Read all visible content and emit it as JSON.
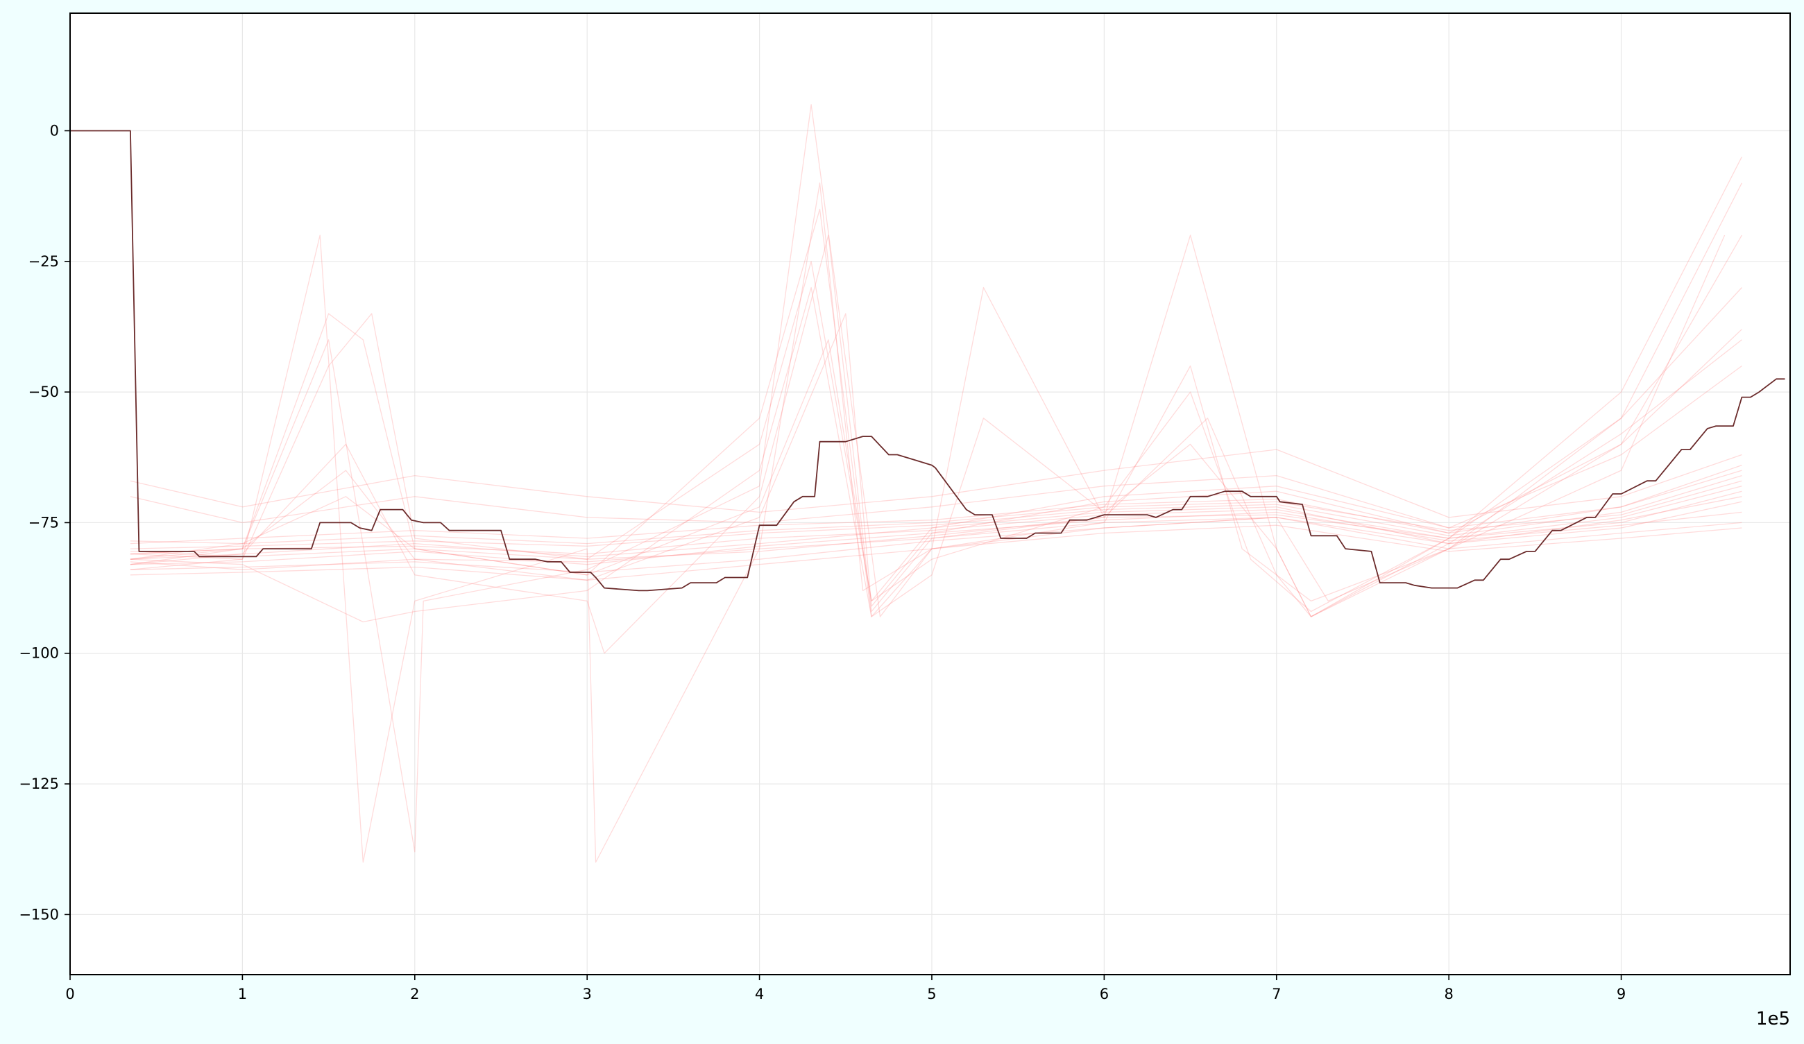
{
  "chart_data": {
    "type": "line",
    "title": "",
    "xlabel": "",
    "ylabel": "",
    "x_offset_text": "1e5",
    "xlim": [
      0,
      9.98
    ],
    "ylim": [
      -161.5,
      22.5
    ],
    "x_ticks": [
      0,
      1,
      2,
      3,
      4,
      5,
      6,
      7,
      8,
      9
    ],
    "x_tick_labels": [
      "0",
      "1",
      "2",
      "3",
      "4",
      "5",
      "6",
      "7",
      "8",
      "9"
    ],
    "y_ticks": [
      0,
      -25,
      -50,
      -75,
      -100,
      -125,
      -150
    ],
    "y_tick_labels": [
      "0",
      "−25",
      "−50",
      "−75",
      "−100",
      "−125",
      "−150"
    ],
    "grid": true,
    "main_series": {
      "color": "#6b2b2b",
      "x": [
        0,
        0.35,
        0.4,
        0.72,
        0.75,
        1.08,
        1.12,
        1.4,
        1.45,
        1.63,
        1.68,
        1.75,
        1.8,
        1.93,
        1.98,
        2.05,
        2.15,
        2.2,
        2.5,
        2.55,
        2.7,
        2.77,
        2.85,
        2.9,
        3.02,
        3.05,
        3.1,
        3.3,
        3.35,
        3.55,
        3.6,
        3.75,
        3.8,
        3.93,
        4.0,
        4.1,
        4.2,
        4.25,
        4.32,
        4.35,
        4.5,
        4.6,
        4.65,
        4.75,
        4.8,
        4.9,
        5.0,
        5.02,
        5.2,
        5.25,
        5.35,
        5.4,
        5.55,
        5.6,
        5.75,
        5.8,
        5.9,
        6.0,
        6.15,
        6.25,
        6.3,
        6.4,
        6.45,
        6.5,
        6.6,
        6.7,
        6.8,
        6.85,
        7.0,
        7.02,
        7.15,
        7.2,
        7.35,
        7.4,
        7.55,
        7.6,
        7.75,
        7.8,
        7.9,
        8.0,
        8.05,
        8.15,
        8.2,
        8.3,
        8.35,
        8.45,
        8.5,
        8.6,
        8.65,
        8.8,
        8.85,
        8.95,
        9.0,
        9.15,
        9.2,
        9.35,
        9.4,
        9.5,
        9.55,
        9.65,
        9.7,
        9.75,
        9.8,
        9.9,
        9.95
      ],
      "y": [
        0,
        0,
        -80.5,
        -80.5,
        -81.5,
        -81.5,
        -80,
        -80,
        -75,
        -75,
        -76,
        -76.5,
        -72.5,
        -72.5,
        -74.5,
        -75,
        -75,
        -76.5,
        -76.5,
        -82,
        -82,
        -82.5,
        -82.5,
        -84.5,
        -84.5,
        -85.5,
        -87.5,
        -88,
        -88,
        -87.5,
        -86.5,
        -86.5,
        -85.5,
        -85.5,
        -75.5,
        -75.5,
        -71,
        -70,
        -70,
        -59.5,
        -59.5,
        -58.5,
        -58.5,
        -62,
        -62,
        -63,
        -64,
        -64.5,
        -72.5,
        -73.5,
        -73.5,
        -78,
        -78,
        -77,
        -77,
        -74.5,
        -74.5,
        -73.5,
        -73.5,
        -73.5,
        -74,
        -72.5,
        -72.5,
        -70,
        -70,
        -69,
        -69,
        -70,
        -70,
        -71,
        -71.5,
        -77.5,
        -77.5,
        -80,
        -80.5,
        -86.5,
        -86.5,
        -87,
        -87.5,
        -87.5,
        -87.5,
        -86,
        -86,
        -82,
        -82,
        -80.5,
        -80.5,
        -76.5,
        -76.5,
        -74,
        -74,
        -69.5,
        -69.5,
        -67,
        -67,
        -61,
        -61,
        -57,
        -56.5,
        -56.5,
        -51,
        -51,
        -50,
        -47.5,
        -47.5
      ]
    },
    "background_series_style": {
      "color": "#ff7f7f",
      "description": "many faint overlapping red ensemble traces"
    },
    "background_series": [
      {
        "x": [
          0.35,
          1.0,
          2.0,
          3.0,
          4.0,
          5.0,
          6.0,
          7.0,
          8.0,
          9.0,
          9.7
        ],
        "y": [
          -82.5,
          -84,
          -82,
          -82.5,
          -80,
          -78,
          -75,
          -74,
          -79,
          -76,
          -71
        ]
      },
      {
        "x": [
          0.35,
          1.0,
          2.0,
          3.0,
          4.0,
          5.0,
          6.0,
          7.0,
          8.0,
          9.0,
          9.7
        ],
        "y": [
          -81,
          -80,
          -79.5,
          -81,
          -78,
          -76.5,
          -73.5,
          -72.5,
          -78,
          -74,
          -68
        ]
      },
      {
        "x": [
          0.35,
          1.0,
          2.0,
          3.0,
          4.0,
          5.0,
          6.0,
          7.0,
          8.0,
          9.0,
          9.7
        ],
        "y": [
          -83,
          -82.5,
          -80.5,
          -83,
          -79.5,
          -77,
          -74.5,
          -73,
          -78.5,
          -75.5,
          -73
        ]
      },
      {
        "x": [
          0.35,
          1.0,
          2.0,
          3.0,
          4.0,
          5.0,
          6.0,
          7.0,
          8.0,
          9.0,
          9.7
        ],
        "y": [
          -80,
          -79.5,
          -78.5,
          -79.5,
          -77,
          -75.5,
          -72.5,
          -71.5,
          -77.5,
          -73,
          -66
        ]
      },
      {
        "x": [
          0.35,
          1.0,
          2.0,
          3.0,
          4.0,
          5.0,
          6.0,
          7.0,
          8.0,
          9.0,
          9.7
        ],
        "y": [
          -84,
          -83.5,
          -82.5,
          -84.5,
          -82,
          -78.5,
          -76,
          -74,
          -80,
          -77,
          -75
        ]
      },
      {
        "x": [
          0.35,
          1.0,
          2.0,
          3.0,
          4.0,
          5.0,
          6.0,
          7.0,
          8.0,
          9.0,
          9.7
        ],
        "y": [
          -79,
          -78,
          -76.5,
          -78,
          -75.5,
          -74.5,
          -71.5,
          -70.5,
          -77,
          -72,
          -64
        ]
      },
      {
        "x": [
          0.35,
          1.0,
          2.0,
          3.0,
          4.0,
          5.0,
          6.0,
          7.0,
          8.0,
          9.0,
          9.7
        ],
        "y": [
          -82,
          -81,
          -79,
          -81.5,
          -79,
          -76,
          -73,
          -72,
          -79,
          -74.5,
          -70
        ]
      },
      {
        "x": [
          0.35,
          1.0,
          2.0,
          3.0,
          4.0,
          5.0,
          6.0,
          7.0,
          8.0,
          9.0,
          9.7
        ],
        "y": [
          -85,
          -84.5,
          -83.5,
          -86,
          -83,
          -80,
          -77,
          -75.5,
          -80.5,
          -78,
          -76
        ]
      },
      {
        "x": [
          0.35,
          1.0,
          2.0,
          3.0,
          4.0,
          5.0,
          6.0,
          7.0,
          8.0,
          9.0,
          9.7
        ],
        "y": [
          -78.5,
          -79,
          -77.5,
          -79,
          -76.5,
          -75,
          -72,
          -71,
          -76.5,
          -73.5,
          -67
        ]
      },
      {
        "x": [
          0.35,
          1.0,
          2.0,
          3.0,
          4.0,
          5.0,
          6.0,
          7.0,
          8.0,
          9.0,
          9.7
        ],
        "y": [
          -80.5,
          -81.5,
          -80,
          -82,
          -80.5,
          -77.5,
          -74,
          -73.5,
          -78,
          -75,
          -69
        ]
      },
      {
        "x": [
          0.35,
          1.0,
          1.5,
          1.7,
          2.0,
          3.0,
          4.0,
          4.35,
          4.65,
          5.0,
          6.0,
          6.5,
          6.8,
          7.2,
          8.0,
          9.0,
          9.7
        ],
        "y": [
          -82,
          -80,
          -35,
          -40,
          -80,
          -85,
          -55,
          -15,
          -93,
          -80,
          -75,
          -45,
          -80,
          -90,
          -80,
          -60,
          -20
        ]
      },
      {
        "x": [
          0.35,
          1.0,
          1.5,
          1.75,
          2.0,
          3.0,
          4.0,
          4.3,
          4.65,
          5.0,
          6.0,
          6.5,
          6.85,
          7.2,
          8.0,
          9.0,
          9.7
        ],
        "y": [
          -81,
          -82,
          -45,
          -35,
          -78,
          -82,
          -60,
          -25,
          -90,
          -82,
          -72,
          -50,
          -82,
          -92,
          -78,
          -55,
          -30
        ]
      },
      {
        "x": [
          0.35,
          1.0,
          1.6,
          2.0,
          3.0,
          3.1,
          4.0,
          4.4,
          4.65,
          5.0,
          6.0,
          6.6,
          7.0,
          7.2,
          8.0,
          9.0,
          9.7
        ],
        "y": [
          -83,
          -81,
          -60,
          -85,
          -90,
          -100,
          -70,
          -20,
          -92,
          -78,
          -74,
          -55,
          -85,
          -93,
          -79,
          -58,
          -40
        ]
      },
      {
        "x": [
          0.35,
          1.0,
          1.7,
          2.0,
          3.0,
          4.0,
          4.3,
          4.65,
          5.0,
          5.3,
          6.0,
          6.5,
          7.0,
          7.2,
          8.0,
          9.0,
          9.6
        ],
        "y": [
          -82,
          -83,
          -94,
          -92,
          -88,
          -65,
          -30,
          -93,
          -85,
          -55,
          -73,
          -60,
          -80,
          -93,
          -80,
          -65,
          -20
        ]
      },
      {
        "x": [
          0.35,
          1.0,
          1.45,
          1.7,
          2.0,
          3.0,
          3.05,
          4.0,
          4.35,
          4.6,
          5.0,
          6.0,
          7.0,
          7.3,
          8.0,
          9.0,
          9.7
        ],
        "y": [
          -84,
          -82,
          -20,
          -140,
          -90,
          -80,
          -140,
          -80,
          -10,
          -88,
          -80,
          -76,
          -74,
          -90,
          -80,
          -55,
          -10
        ]
      },
      {
        "x": [
          0.35,
          1.0,
          1.5,
          2.0,
          2.05,
          3.0,
          4.0,
          4.3,
          4.7,
          5.0,
          5.3,
          6.0,
          6.5,
          7.0,
          7.2,
          8.0,
          9.0,
          9.7
        ],
        "y": [
          -81,
          -80,
          -40,
          -138,
          -90,
          -84,
          -68,
          5,
          -93,
          -80,
          -30,
          -74,
          -20,
          -80,
          -93,
          -78,
          -50,
          -5
        ]
      },
      {
        "x": [
          0.35,
          1.0,
          1.6,
          2.0,
          3.0,
          4.0,
          4.4,
          4.65,
          5.0,
          6.0,
          7.0,
          8.0,
          9.0,
          9.7
        ],
        "y": [
          -82,
          -79,
          -70,
          -80,
          -85,
          -72,
          -40,
          -90,
          -76,
          -70,
          -68,
          -76,
          -62,
          -45
        ]
      },
      {
        "x": [
          0.35,
          1.0,
          1.6,
          2.0,
          3.0,
          4.0,
          4.5,
          4.65,
          5.0,
          6.0,
          7.0,
          8.0,
          9.0,
          9.7
        ],
        "y": [
          -83,
          -80,
          -65,
          -82,
          -86,
          -74,
          -35,
          -91,
          -77,
          -71,
          -69,
          -77,
          -60,
          -38
        ]
      },
      {
        "x": [
          0.35,
          1.0,
          2.0,
          3.0,
          4.0,
          5.0,
          6.0,
          7.0,
          8.0,
          9.0,
          9.7
        ],
        "y": [
          -67,
          -72,
          -66,
          -70,
          -73,
          -70,
          -65,
          -61,
          -74,
          -70,
          -62
        ]
      },
      {
        "x": [
          0.35,
          1.0,
          2.0,
          3.0,
          4.0,
          5.0,
          6.0,
          7.0,
          8.0,
          9.0,
          9.7
        ],
        "y": [
          -70,
          -75,
          -70,
          -74,
          -75,
          -72,
          -68,
          -66,
          -76,
          -72,
          -65
        ]
      }
    ]
  }
}
